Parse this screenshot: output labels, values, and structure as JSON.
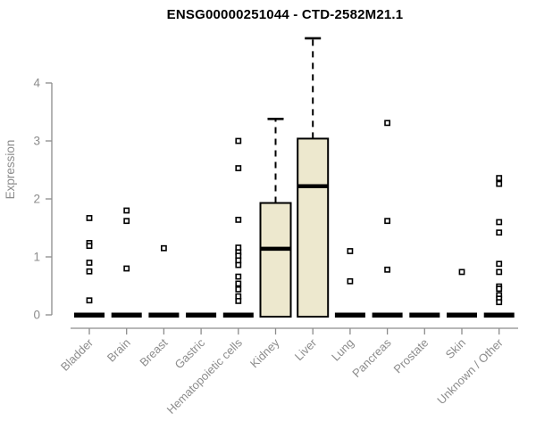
{
  "chart_data": {
    "type": "box",
    "title": "ENSG00000251044 - CTD-2582M21.1",
    "ylabel": "Expression",
    "xlabel": "",
    "yticks": [
      0,
      1,
      2,
      3,
      4
    ],
    "ylim": [
      0,
      4.8
    ],
    "grid": false,
    "legend": "none",
    "categories": [
      "Bladder",
      "Brain",
      "Breast",
      "Gastric",
      "Hematopoietic cells",
      "Kidney",
      "Liver",
      "Lung",
      "Pancreas",
      "Prostate",
      "Skin",
      "Unknown / Other"
    ],
    "boxes": [
      {
        "category": "Bladder",
        "q1": 0,
        "median": 0,
        "q3": 0,
        "whisker_low": 0,
        "whisker_high": 0,
        "outliers": [
          1.67,
          1.24,
          1.19,
          0.9,
          0.75,
          0.25
        ]
      },
      {
        "category": "Brain",
        "q1": 0,
        "median": 0,
        "q3": 0,
        "whisker_low": 0,
        "whisker_high": 0,
        "outliers": [
          1.8,
          1.62,
          0.8
        ]
      },
      {
        "category": "Breast",
        "q1": 0,
        "median": 0,
        "q3": 0,
        "whisker_low": 0,
        "whisker_high": 0,
        "outliers": [
          1.15
        ]
      },
      {
        "category": "Gastric",
        "q1": 0,
        "median": 0,
        "q3": 0,
        "whisker_low": 0,
        "whisker_high": 0,
        "outliers": []
      },
      {
        "category": "Hematopoietic cells",
        "q1": 0,
        "median": 0,
        "q3": 0,
        "whisker_low": 0,
        "whisker_high": 0,
        "outliers": [
          3.0,
          2.53,
          1.64,
          1.16,
          1.08,
          1.02,
          0.94,
          0.86,
          0.66,
          0.54,
          0.44,
          0.32,
          0.24
        ]
      },
      {
        "category": "Kidney",
        "q1": 0,
        "median": 1.14,
        "q3": 1.93,
        "whisker_low": 0,
        "whisker_high": 3.38,
        "outliers": []
      },
      {
        "category": "Liver",
        "q1": 0,
        "median": 2.22,
        "q3": 3.04,
        "whisker_low": 0,
        "whisker_high": 4.77,
        "outliers": []
      },
      {
        "category": "Lung",
        "q1": 0,
        "median": 0,
        "q3": 0,
        "whisker_low": 0,
        "whisker_high": 0,
        "outliers": [
          1.1,
          0.58
        ]
      },
      {
        "category": "Pancreas",
        "q1": 0,
        "median": 0,
        "q3": 0,
        "whisker_low": 0,
        "whisker_high": 0,
        "outliers": [
          3.31,
          1.62,
          0.78
        ]
      },
      {
        "category": "Prostate",
        "q1": 0,
        "median": 0,
        "q3": 0,
        "whisker_low": 0,
        "whisker_high": 0,
        "outliers": []
      },
      {
        "category": "Skin",
        "q1": 0,
        "median": 0,
        "q3": 0,
        "whisker_low": 0,
        "whisker_high": 0,
        "outliers": [
          0.74
        ]
      },
      {
        "category": "Unknown / Other",
        "q1": 0,
        "median": 0,
        "q3": 0,
        "whisker_low": 0,
        "whisker_high": 0,
        "outliers": [
          2.36,
          2.26,
          1.6,
          1.42,
          0.88,
          0.74,
          0.49,
          0.45,
          0.34,
          0.28,
          0.22
        ]
      }
    ],
    "colors": {
      "box_fill": "#EDE8CE",
      "box_stroke": "#000000",
      "median": "#000000",
      "whisker": "#000000",
      "axis": "#8c8c8c",
      "tick_label": "#8c8c8c",
      "title": "#000000",
      "outlier_fill": "#ffffff",
      "outlier_stroke": "#000000",
      "background": "#ffffff"
    }
  }
}
